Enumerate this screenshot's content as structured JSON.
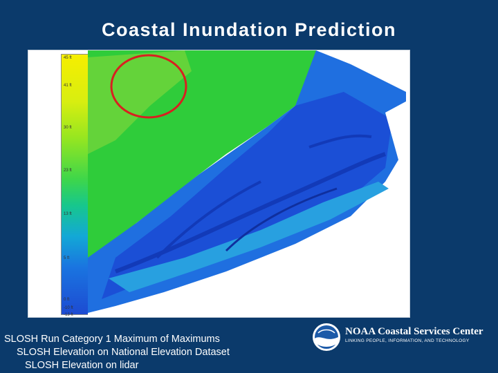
{
  "slide": {
    "title": "Coastal Inundation Prediction",
    "captions": [
      "SLOSH Run Category 1 Maximum of Maximums",
      "SLOSH Elevation on National Elevation Dataset",
      "SLOSH Elevation on lidar"
    ]
  },
  "legend": {
    "ticks": [
      "45 ft",
      "41 ft",
      "30 ft",
      "23 ft",
      "13 ft",
      "5 ft",
      "0 ft",
      "-10 ft",
      "-13 ft"
    ]
  },
  "branding": {
    "name": "NOAA Coastal Services Center",
    "tagline": "LINKING PEOPLE, INFORMATION, AND TECHNOLOGY",
    "logo_text": "NOAA"
  },
  "colors": {
    "background": "#0b3a6b",
    "highlight_circle": "#d82020"
  }
}
